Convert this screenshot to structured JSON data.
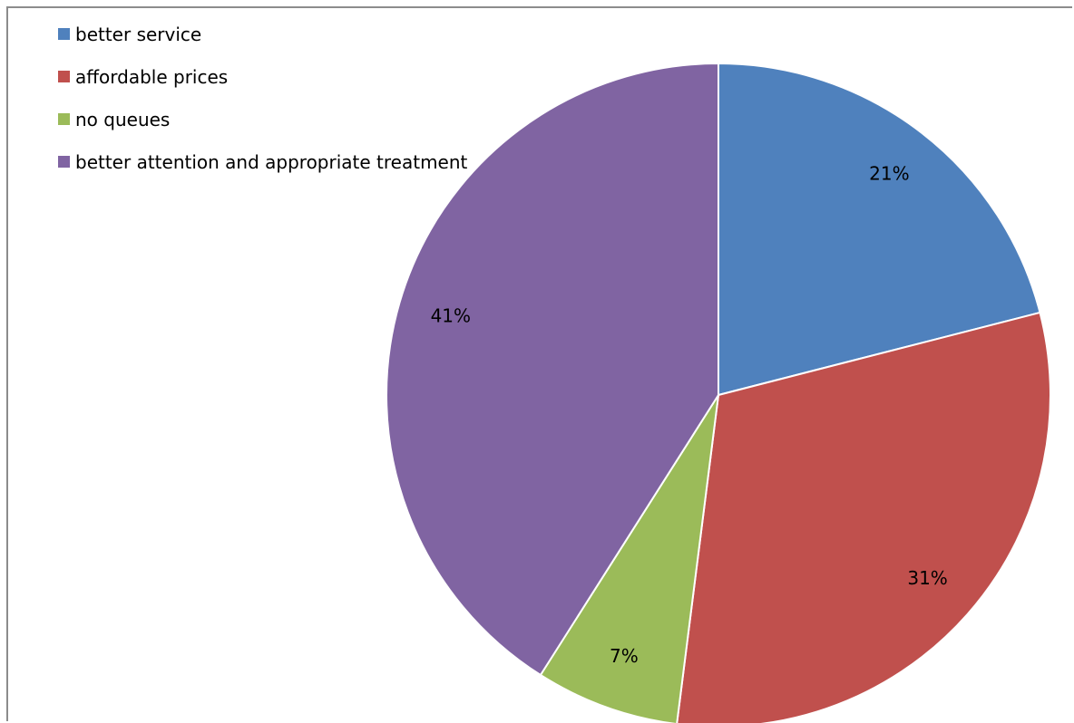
{
  "chart_data": {
    "type": "pie",
    "categories": [
      "better service",
      "affordable prices",
      "no queues",
      "better attention and appropriate treatment"
    ],
    "values": [
      21,
      31,
      7,
      41
    ],
    "data_labels": [
      "21%",
      "31%",
      "7%",
      "41%"
    ],
    "colors": [
      "#4f81bd",
      "#c0504d",
      "#9bbb59",
      "#8064a2"
    ],
    "start_angle": "12 o'clock",
    "direction": "clockwise",
    "legend": "top-left"
  }
}
